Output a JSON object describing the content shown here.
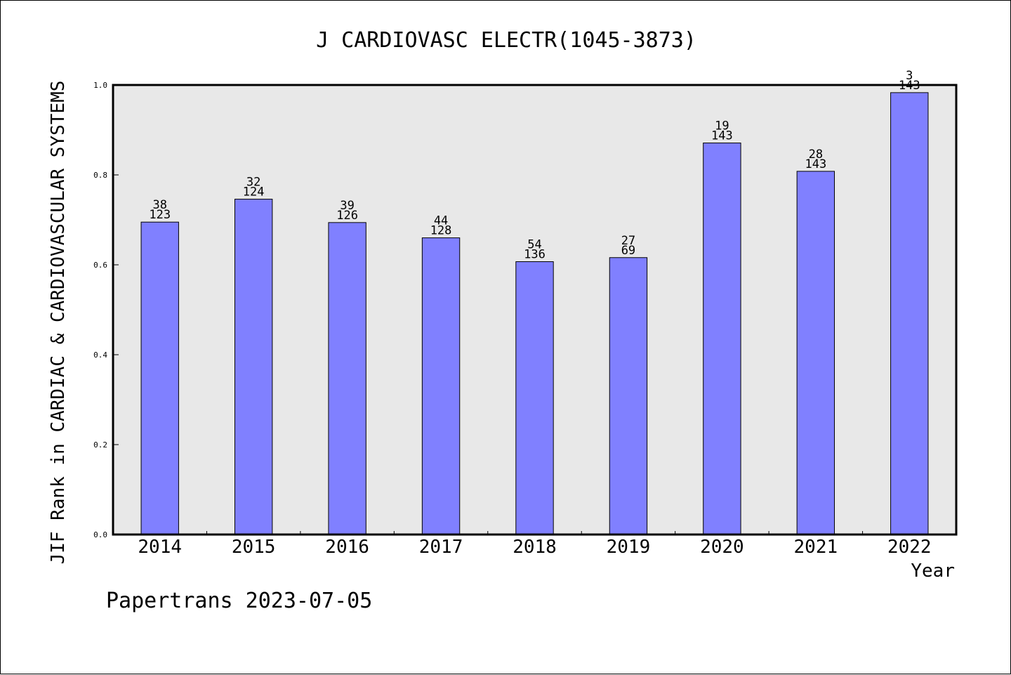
{
  "chart_data": {
    "type": "bar",
    "title": "J CARDIOVASC ELECTR(1045-3873)",
    "xlabel": "Year",
    "ylabel": "JIF Rank in CARDIAC & CARDIOVASCULAR SYSTEMS",
    "ylim": [
      0,
      1
    ],
    "yticks": [
      "0.0",
      "0.2",
      "0.4",
      "0.6",
      "0.8",
      "1.0"
    ],
    "categories": [
      "2014",
      "2015",
      "2016",
      "2017",
      "2018",
      "2019",
      "2020",
      "2021",
      "2022"
    ],
    "values": [
      0.695,
      0.746,
      0.694,
      0.66,
      0.607,
      0.616,
      0.871,
      0.808,
      0.983
    ],
    "rank": [
      "38",
      "32",
      "39",
      "44",
      "54",
      "27",
      "19",
      "28",
      "3"
    ],
    "total": [
      "123",
      "124",
      "126",
      "128",
      "136",
      "69",
      "143",
      "143",
      "143"
    ],
    "grid": false,
    "colors": {
      "bar": "#8080ff",
      "plot_background": "#e8e8e8",
      "border": "#000000"
    }
  },
  "footer": {
    "credit": "Papertrans 2023-07-05"
  }
}
